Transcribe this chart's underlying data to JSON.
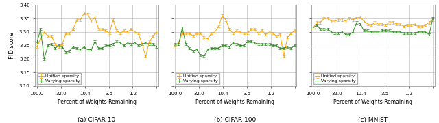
{
  "subplots": [
    {
      "title": "(a) CIFAR-10",
      "ylabel": "FID score",
      "xlabel": "Percent of Weights Remaining",
      "ylim": [
        3.1,
        3.4
      ],
      "yticks": [
        3.1,
        3.15,
        3.2,
        3.25,
        3.3,
        3.35,
        3.4
      ],
      "xtick_labels": [
        "100.0",
        "32.0",
        "10.4",
        "3.5",
        "1.2",
        ""
      ],
      "unified_sparsity": [
        3.245,
        3.275,
        3.3,
        3.285,
        3.285,
        3.255,
        3.245,
        3.255,
        3.295,
        3.295,
        3.31,
        3.345,
        3.345,
        3.37,
        3.365,
        3.34,
        3.355,
        3.31,
        3.31,
        3.305,
        3.295,
        3.345,
        3.305,
        3.295,
        3.305,
        3.3,
        3.31,
        3.3,
        3.295,
        3.255,
        3.21,
        3.265,
        3.285,
        3.3
      ],
      "varying_sparsity": [
        3.26,
        3.31,
        3.2,
        3.25,
        3.255,
        3.24,
        3.25,
        3.245,
        3.225,
        3.23,
        3.245,
        3.24,
        3.235,
        3.245,
        3.235,
        3.235,
        3.265,
        3.24,
        3.24,
        3.25,
        3.25,
        3.255,
        3.265,
        3.26,
        3.25,
        3.26,
        3.255,
        3.26,
        3.25,
        3.255,
        3.26,
        3.255,
        3.255,
        3.245
      ]
    },
    {
      "title": "(b) CIFAR-100",
      "ylabel": "",
      "xlabel": "Percent of Weights Remaining",
      "ylim": [
        3.1,
        3.4
      ],
      "yticks": [
        3.1,
        3.15,
        3.2,
        3.25,
        3.3,
        3.35,
        3.4
      ],
      "xtick_labels": [
        "100.0",
        "32.0",
        "10.4",
        "3.5",
        "1.2",
        ""
      ],
      "unified_sparsity": [
        3.25,
        3.26,
        3.295,
        3.295,
        3.295,
        3.285,
        3.295,
        3.295,
        3.28,
        3.275,
        3.295,
        3.3,
        3.32,
        3.36,
        3.345,
        3.31,
        3.295,
        3.305,
        3.3,
        3.295,
        3.295,
        3.31,
        3.31,
        3.295,
        3.305,
        3.29,
        3.3,
        3.295,
        3.285,
        3.29,
        3.21,
        3.28,
        3.295,
        3.305
      ],
      "varying_sparsity": [
        3.255,
        3.255,
        3.315,
        3.255,
        3.24,
        3.23,
        3.235,
        3.215,
        3.21,
        3.235,
        3.24,
        3.24,
        3.24,
        3.25,
        3.25,
        3.245,
        3.26,
        3.255,
        3.25,
        3.25,
        3.265,
        3.265,
        3.26,
        3.255,
        3.255,
        3.255,
        3.255,
        3.25,
        3.25,
        3.24,
        3.24,
        3.245,
        3.24,
        3.25
      ]
    },
    {
      "title": "(c) MNIST",
      "ylabel": "",
      "xlabel": "Percent of Weights Remaining",
      "ylim": [
        3.1,
        3.4
      ],
      "yticks": [
        3.1,
        3.15,
        3.2,
        3.25,
        3.3,
        3.35,
        3.4
      ],
      "xtick_labels": [
        "100.0",
        "32.0",
        "10.4",
        "3.5",
        "1.2",
        ""
      ],
      "unified_sparsity": [
        3.315,
        3.335,
        3.335,
        3.35,
        3.35,
        3.34,
        3.34,
        3.345,
        3.345,
        3.34,
        3.35,
        3.345,
        3.35,
        3.355,
        3.34,
        3.33,
        3.325,
        3.335,
        3.33,
        3.33,
        3.325,
        3.335,
        3.335,
        3.33,
        3.33,
        3.32,
        3.325,
        3.325,
        3.33,
        3.32,
        3.32,
        3.325,
        3.335,
        3.345
      ],
      "varying_sparsity": [
        3.315,
        3.325,
        3.31,
        3.31,
        3.31,
        3.3,
        3.295,
        3.295,
        3.3,
        3.29,
        3.29,
        3.3,
        3.335,
        3.33,
        3.305,
        3.305,
        3.3,
        3.3,
        3.3,
        3.305,
        3.305,
        3.305,
        3.3,
        3.3,
        3.3,
        3.295,
        3.295,
        3.295,
        3.295,
        3.3,
        3.3,
        3.3,
        3.29,
        3.35
      ]
    }
  ],
  "orange_color": "#FFA500",
  "green_color": "#2E8B22",
  "legend_labels": [
    "Unified sparsity",
    "Varying sparsity"
  ],
  "background_color": "#ffffff",
  "grid_color": "#b0b0b0",
  "n_points": 34,
  "figsize": [
    6.4,
    1.8
  ],
  "dpi": 100
}
